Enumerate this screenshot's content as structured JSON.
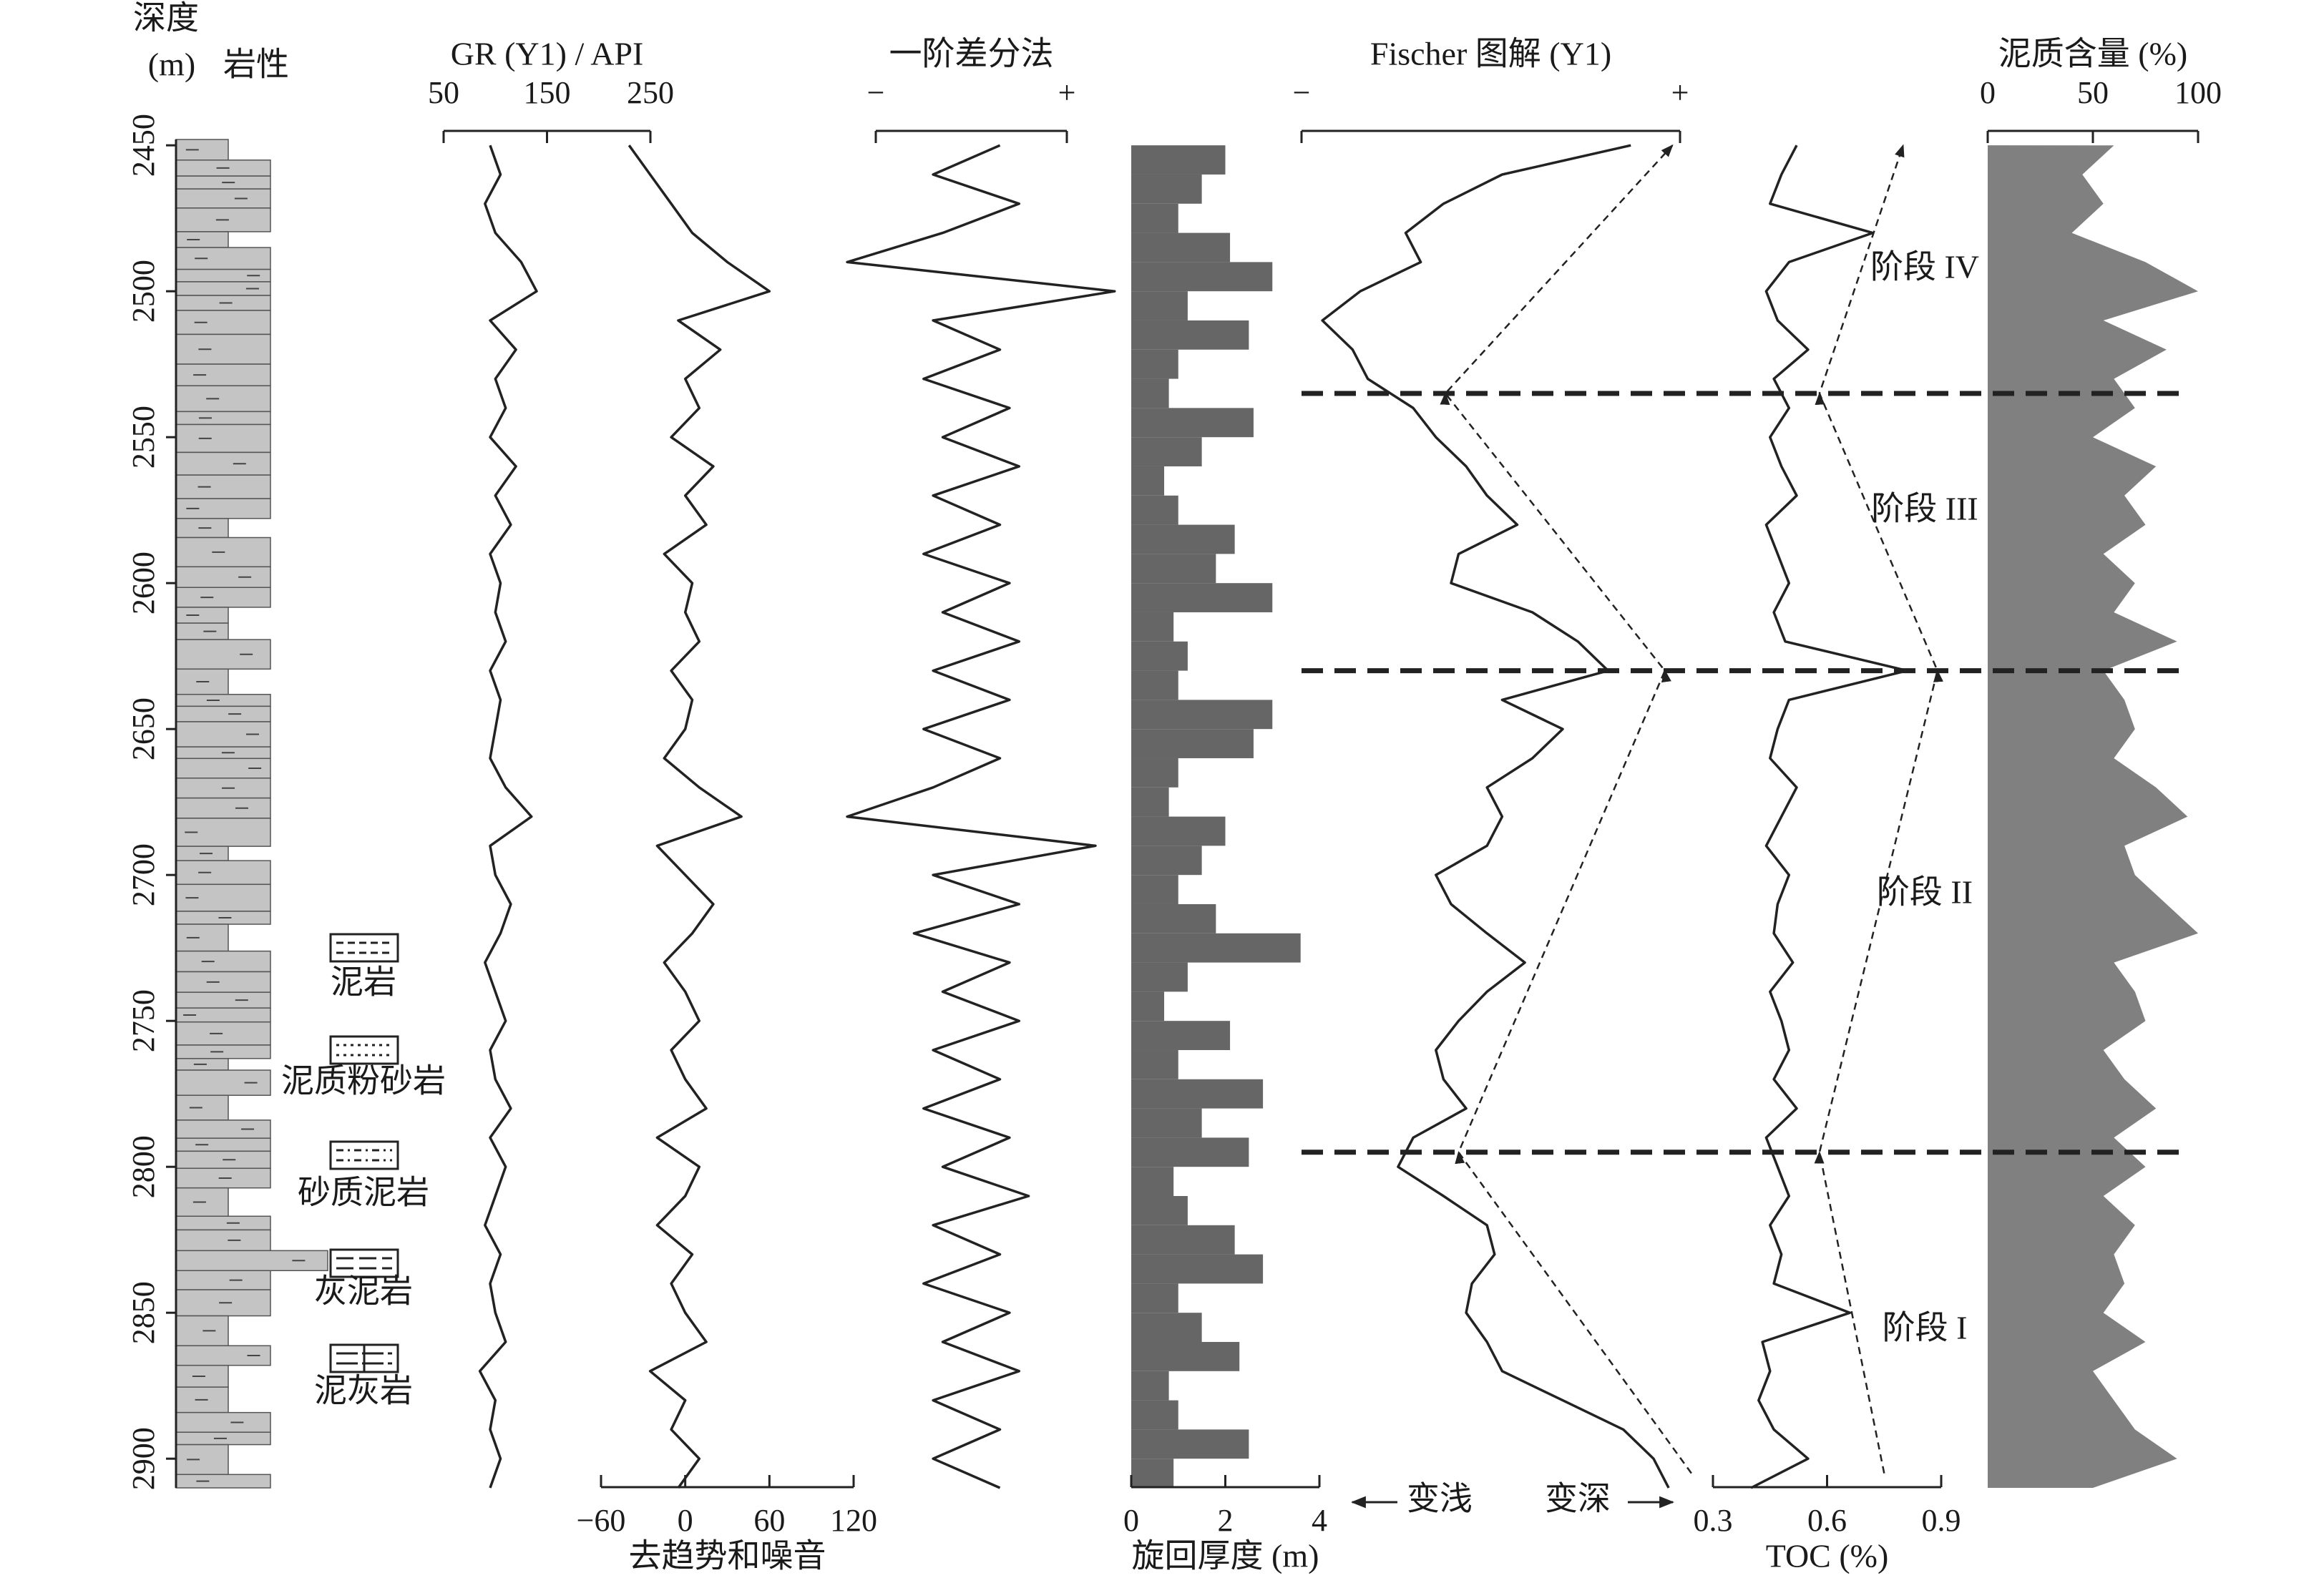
{
  "chart_data": [
    {
      "type": "lithology",
      "title": "岩性",
      "y_label": "深度",
      "y_unit": "(m)",
      "y": [
        2450,
        2460,
        2470,
        2480,
        2490,
        2500,
        2510,
        2520,
        2530,
        2540,
        2550,
        2560,
        2570,
        2580,
        2590,
        2600,
        2610,
        2620,
        2630,
        2640,
        2650,
        2660,
        2670,
        2680,
        2690,
        2700,
        2710,
        2720,
        2730,
        2740,
        2750,
        2760,
        2770,
        2780,
        2790,
        2800,
        2810,
        2820,
        2830,
        2840,
        2850,
        2860,
        2870,
        2880,
        2890,
        2900,
        2910
      ],
      "ylim": [
        2448,
        2910
      ],
      "yticks": [
        2450,
        2500,
        2550,
        2600,
        2650,
        2700,
        2750,
        2800,
        2850,
        2900
      ],
      "legend": [
        "泥岩",
        "泥质粉砂岩",
        "砂质泥岩",
        "灰泥岩",
        "泥灰岩"
      ],
      "boundaries": [
        2535,
        2630,
        2795
      ],
      "stages": [
        "阶段 IV",
        "阶段 III",
        "阶段 II",
        "阶段 I"
      ]
    },
    {
      "type": "line",
      "title": "GR (Y1) / API",
      "axis_side": "top",
      "color": "#222222",
      "xlim": [
        50,
        250
      ],
      "xticks": [
        50,
        150,
        250
      ],
      "values": [
        95,
        105,
        90,
        100,
        125,
        140,
        95,
        120,
        100,
        110,
        95,
        120,
        100,
        115,
        95,
        105,
        100,
        110,
        95,
        105,
        100,
        95,
        110,
        135,
        95,
        100,
        115,
        105,
        90,
        100,
        110,
        95,
        100,
        115,
        95,
        110,
        100,
        90,
        105,
        95,
        100,
        110,
        85,
        100,
        95,
        105,
        95
      ]
    },
    {
      "type": "line",
      "x_label": "去趋势和噪音",
      "axis_side": "bottom",
      "color": "#222222",
      "xlim": [
        -60,
        120
      ],
      "xticks": [
        {
          "value": -60,
          "label": "−60"
        },
        0,
        60,
        120
      ],
      "values": [
        -40,
        -25,
        -10,
        5,
        30,
        60,
        -5,
        25,
        0,
        10,
        -10,
        20,
        0,
        15,
        -15,
        5,
        0,
        10,
        -10,
        5,
        0,
        -15,
        10,
        40,
        -20,
        0,
        20,
        5,
        -15,
        0,
        10,
        -10,
        0,
        15,
        -20,
        10,
        0,
        -20,
        5,
        -10,
        0,
        15,
        -25,
        0,
        -10,
        10,
        -5
      ]
    },
    {
      "type": "line",
      "title": "一阶差分法",
      "axis_side": "top",
      "color": "#222222",
      "xlim": [
        -1,
        1
      ],
      "xticks": [
        {
          "value": -1,
          "label": "−"
        },
        {
          "value": 1,
          "label": "+"
        }
      ],
      "values": [
        0.3,
        -0.4,
        0.5,
        -0.3,
        -1.3,
        1.5,
        -0.4,
        0.3,
        -0.5,
        0.4,
        -0.3,
        0.5,
        -0.4,
        0.3,
        -0.5,
        0.4,
        -0.3,
        0.5,
        -0.4,
        0.4,
        -0.5,
        0.3,
        -0.4,
        -1.3,
        1.3,
        -0.4,
        0.5,
        -0.6,
        0.4,
        -0.3,
        0.5,
        -0.4,
        0.3,
        -0.5,
        0.4,
        -0.3,
        0.6,
        -0.4,
        0.3,
        -0.5,
        0.4,
        -0.3,
        0.5,
        -0.4,
        0.3,
        -0.4,
        0.3
      ]
    },
    {
      "type": "bar",
      "x_label": "旋回厚度 (m)",
      "axis_side": "bottom",
      "color": "#666666",
      "xlim": [
        0,
        4
      ],
      "xticks": [
        0,
        2,
        4
      ],
      "values": [
        2.0,
        1.5,
        1.0,
        2.1,
        3.0,
        1.2,
        2.5,
        1.0,
        0.8,
        2.6,
        1.5,
        0.7,
        1.0,
        2.2,
        1.8,
        3.0,
        0.9,
        1.2,
        1.0,
        3.0,
        2.6,
        1.0,
        0.8,
        2.0,
        1.5,
        1.0,
        1.8,
        3.6,
        1.2,
        0.7,
        2.1,
        1.0,
        2.8,
        1.5,
        2.5,
        0.9,
        1.2,
        2.2,
        2.8,
        1.0,
        1.5,
        2.3,
        0.8,
        1.0,
        2.5,
        0.9,
        1.6
      ]
    },
    {
      "type": "line",
      "title": "Fischer 图解 (Y1)",
      "axis_side": "top",
      "color": "#222222",
      "xlim": [
        -1,
        1
      ],
      "xticks": [
        {
          "value": -1,
          "label": "−"
        },
        {
          "value": 1,
          "label": "+"
        }
      ],
      "values": [
        0.74,
        0.06,
        -0.25,
        -0.45,
        -0.37,
        -0.69,
        -0.89,
        -0.73,
        -0.65,
        -0.41,
        -0.29,
        -0.13,
        -0.02,
        0.14,
        -0.17,
        -0.21,
        0.22,
        0.46,
        0.62,
        0.06,
        0.38,
        0.22,
        -0.02,
        0.06,
        -0.02,
        -0.29,
        -0.21,
        -0.02,
        0.18,
        -0.02,
        -0.17,
        -0.29,
        -0.25,
        -0.13,
        -0.41,
        -0.49,
        -0.25,
        -0.02,
        0.02,
        -0.1,
        -0.13,
        -0.02,
        0.06,
        0.38,
        0.7,
        0.86,
        0.94
      ],
      "trend": {
        "y": [
          2905,
          2795,
          2630,
          2535,
          2450
        ],
        "values": [
          1.06,
          -0.17,
          0.92,
          -0.24,
          0.96
        ]
      },
      "annotations": [
        "变浅",
        "变深"
      ]
    },
    {
      "type": "line",
      "x_label": "TOC (%)",
      "axis_side": "bottom",
      "color": "#222222",
      "xlim": [
        0.3,
        0.9
      ],
      "xticks": [
        0.3,
        0.6,
        0.9
      ],
      "values": [
        0.52,
        0.48,
        0.45,
        0.72,
        0.5,
        0.44,
        0.47,
        0.55,
        0.46,
        0.5,
        0.45,
        0.48,
        0.52,
        0.44,
        0.47,
        0.5,
        0.46,
        0.49,
        0.81,
        0.5,
        0.47,
        0.45,
        0.52,
        0.48,
        0.44,
        0.5,
        0.47,
        0.46,
        0.51,
        0.45,
        0.48,
        0.5,
        0.46,
        0.52,
        0.44,
        0.47,
        0.5,
        0.45,
        0.48,
        0.46,
        0.66,
        0.43,
        0.45,
        0.42,
        0.46,
        0.55,
        0.4
      ],
      "trend": {
        "y": [
          2905,
          2795,
          2630,
          2535,
          2450
        ],
        "values": [
          0.75,
          0.58,
          0.89,
          0.58,
          0.8
        ]
      }
    },
    {
      "type": "area",
      "title": "泥质含量 (%)",
      "axis_side": "top",
      "color": "#808080",
      "xlim": [
        0,
        100
      ],
      "xticks": [
        0,
        50,
        100
      ],
      "values": [
        60,
        45,
        55,
        40,
        75,
        100,
        55,
        85,
        60,
        70,
        50,
        80,
        65,
        75,
        55,
        70,
        60,
        90,
        55,
        65,
        70,
        60,
        80,
        95,
        65,
        70,
        85,
        100,
        60,
        70,
        75,
        55,
        65,
        80,
        60,
        75,
        55,
        70,
        60,
        65,
        55,
        75,
        50,
        60,
        70,
        90,
        50
      ]
    }
  ]
}
